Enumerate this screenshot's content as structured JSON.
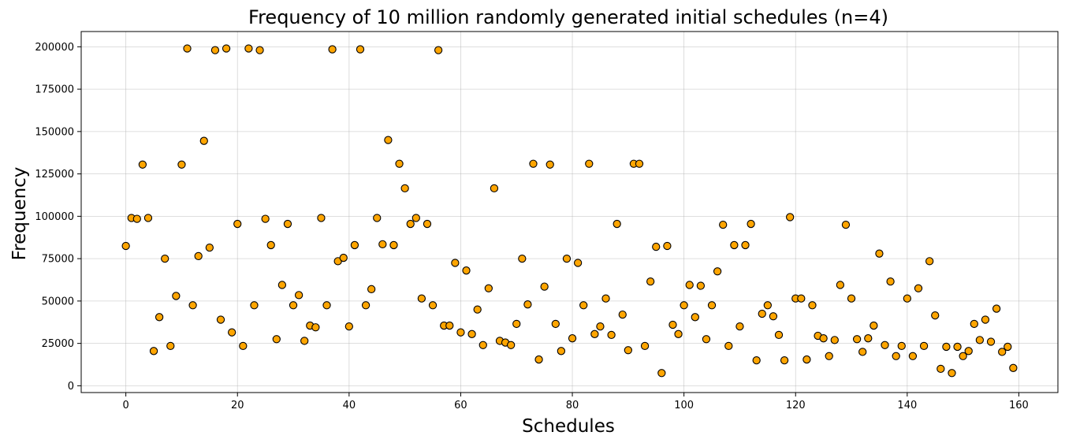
{
  "chart_data": {
    "type": "scatter",
    "title": "Frequency of 10 million randomly generated initial schedules (n=4)",
    "xlabel": "Schedules",
    "ylabel": "Frequency",
    "xlim": [
      -8,
      167
    ],
    "ylim": [
      -4000,
      209000
    ],
    "xticks": [
      0,
      20,
      40,
      60,
      80,
      100,
      120,
      140,
      160
    ],
    "yticks": [
      0,
      25000,
      50000,
      75000,
      100000,
      125000,
      150000,
      175000,
      200000
    ],
    "grid": true,
    "marker_fill": "#ffa500",
    "marker_edge": "#000000",
    "x": [
      0,
      1,
      2,
      3,
      4,
      5,
      6,
      7,
      8,
      9,
      10,
      11,
      12,
      13,
      14,
      15,
      16,
      17,
      18,
      19,
      20,
      21,
      22,
      23,
      24,
      25,
      26,
      27,
      28,
      29,
      30,
      31,
      32,
      33,
      34,
      35,
      36,
      37,
      38,
      39,
      40,
      41,
      42,
      43,
      44,
      45,
      46,
      47,
      48,
      49,
      50,
      51,
      52,
      53,
      54,
      55,
      56,
      57,
      58,
      59,
      60,
      61,
      62,
      63,
      64,
      65,
      66,
      67,
      68,
      69,
      70,
      71,
      72,
      73,
      74,
      75,
      76,
      77,
      78,
      79,
      80,
      81,
      82,
      83,
      84,
      85,
      86,
      87,
      88,
      89,
      90,
      91,
      92,
      93,
      94,
      95,
      96,
      97,
      98,
      99,
      100,
      101,
      102,
      103,
      104,
      105,
      106,
      107,
      108,
      109,
      110,
      111,
      112,
      113,
      114,
      115,
      116,
      117,
      118,
      119,
      120,
      121,
      122,
      123,
      124,
      125,
      126,
      127,
      128,
      129,
      130,
      131,
      132,
      133,
      134,
      135,
      136,
      137,
      138,
      139,
      140,
      141,
      142,
      143,
      144,
      145,
      146,
      147,
      148,
      149,
      150,
      151,
      152,
      153,
      154,
      155,
      156,
      157,
      158,
      159
    ],
    "y": [
      82500,
      99000,
      98500,
      130500,
      99000,
      20500,
      40500,
      75000,
      23500,
      53000,
      130500,
      199000,
      47500,
      76500,
      144500,
      81500,
      198000,
      39000,
      199000,
      31500,
      95500,
      23500,
      199000,
      47500,
      198000,
      98500,
      83000,
      27500,
      59500,
      95500,
      47500,
      53500,
      26500,
      35500,
      34500,
      99000,
      47500,
      198500,
      73500,
      75500,
      35000,
      83000,
      198500,
      47500,
      57000,
      99000,
      83500,
      145000,
      83000,
      131000,
      116500,
      95500,
      99000,
      51500,
      95500,
      47500,
      198000,
      35500,
      35500,
      72500,
      31500,
      68000,
      30500,
      45000,
      24000,
      57500,
      116500,
      26500,
      25500,
      24000,
      36500,
      75000,
      48000,
      131000,
      15500,
      58500,
      130500,
      36500,
      20500,
      75000,
      28000,
      72500,
      47500,
      131000,
      30500,
      35000,
      51500,
      30000,
      95500,
      42000,
      21000,
      131000,
      131000,
      23500,
      61500,
      82000,
      7500,
      82500,
      36000,
      30500,
      47500,
      59500,
      40500,
      59000,
      27500,
      47500,
      67500,
      95000,
      23500,
      83000,
      35000,
      83000,
      95500,
      15000,
      42500,
      47500,
      41000,
      30000,
      15000,
      99500,
      51500,
      51500,
      15500,
      47500,
      29500,
      28000,
      17500,
      27000,
      59500,
      95000,
      51500,
      27500,
      20000,
      28000,
      35500,
      78000,
      24000,
      61500,
      17500,
      23500,
      51500,
      17500,
      57500,
      23500,
      73500,
      41500,
      10000,
      23000,
      7500,
      23000,
      17500,
      20500,
      36500,
      27000,
      39000,
      26000,
      45500,
      20000,
      23000,
      10500
    ]
  }
}
